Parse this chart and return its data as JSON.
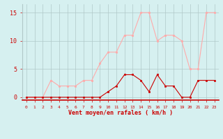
{
  "hours": [
    0,
    1,
    2,
    3,
    4,
    5,
    6,
    7,
    8,
    9,
    10,
    11,
    12,
    13,
    14,
    15,
    16,
    17,
    18,
    19,
    20,
    21,
    22,
    23
  ],
  "vent_moyen": [
    0,
    0,
    0,
    0,
    0,
    0,
    0,
    0,
    0,
    0,
    1,
    2,
    4,
    4,
    3,
    1,
    4,
    2,
    2,
    0,
    0,
    3,
    3,
    3
  ],
  "rafales": [
    0,
    0,
    0,
    3,
    2,
    2,
    2,
    3,
    3,
    6,
    8,
    8,
    11,
    11,
    15,
    15,
    10,
    11,
    11,
    10,
    5,
    5,
    15,
    15
  ],
  "color_moyen": "#cc0000",
  "color_rafales": "#ffaaaa",
  "bg_color": "#d6f0f0",
  "grid_color": "#b0c8c8",
  "xlabel": "Vent moyen/en rafales ( km/h )",
  "yticks": [
    0,
    5,
    10,
    15
  ],
  "xlim": [
    -0.5,
    23.5
  ],
  "ylim": [
    -0.5,
    16.5
  ]
}
